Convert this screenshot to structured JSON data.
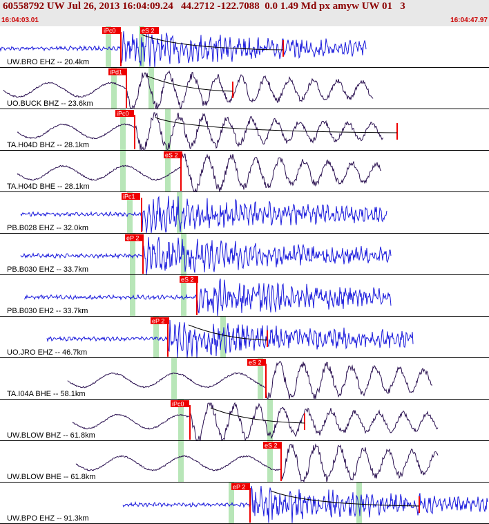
{
  "header": {
    "title": "60558792 UW Jul 26, 2013 16:04:09.24   44.2712 -122.7088  0.0 1.49 Md px amyw UW 01   3",
    "start_time": "16:04:03.01",
    "end_time": "16:04:47.97"
  },
  "traces": [
    {
      "label": "UW.BRO EHZ -- 20.4km",
      "picks": [
        "iPc0",
        "eS 2"
      ]
    },
    {
      "label": "UO.BUCK BHZ -- 23.6km",
      "picks": [
        "iPd1"
      ]
    },
    {
      "label": "TA.H04D BHZ -- 28.1km",
      "picks": [
        "iPc0"
      ]
    },
    {
      "label": "TA.H04D BHE -- 28.1km",
      "picks": [
        "eS 2"
      ]
    },
    {
      "label": "PB.B028 EHZ -- 32.0km",
      "picks": [
        "iPc1"
      ]
    },
    {
      "label": "PB.B030 EHZ -- 33.7km",
      "picks": [
        "eP 2"
      ]
    },
    {
      "label": "PB.B030 EH2 -- 33.7km",
      "picks": [
        "eS 2"
      ]
    },
    {
      "label": "UO.JRO EHZ -- 46.7km",
      "picks": [
        "eP 2"
      ]
    },
    {
      "label": "TA.I04A BHE -- 58.1km",
      "picks": [
        "eS 2"
      ]
    },
    {
      "label": "UW.BLOW BHZ -- 61.8km",
      "picks": [
        "iPc0"
      ]
    },
    {
      "label": "UW.BLOW BHE -- 61.8km",
      "picks": [
        "eS 2"
      ]
    },
    {
      "label": "UW.BPO EHZ -- 91.3km",
      "picks": [
        "eP 2"
      ]
    }
  ]
}
